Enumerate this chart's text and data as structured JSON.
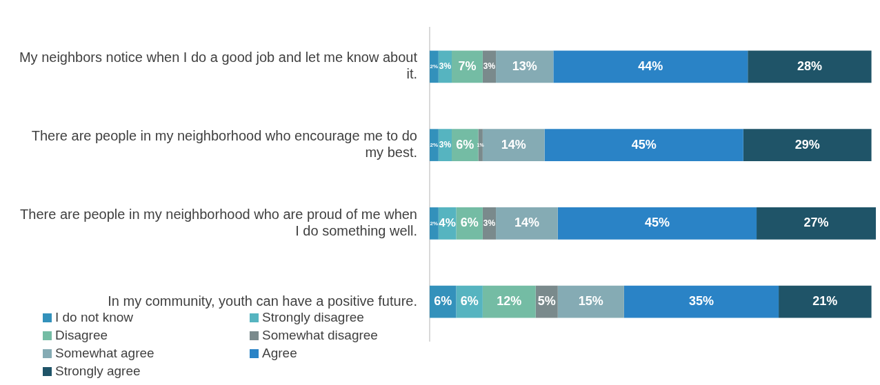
{
  "chart_data": {
    "type": "bar",
    "orientation": "horizontal",
    "stacked": true,
    "legend": "bottom left",
    "grid": false,
    "tick_labels": "y",
    "categories": [
      "My neighbors notice when I do a good job and let me know about it.",
      "There are people in my neighborhood who encourage me to do my best.",
      "There are people in my neighborhood who are proud of me when I do something well.",
      "In my community, youth can have a positive future."
    ],
    "series": [
      {
        "name": "I do not know",
        "color": "#3391bb",
        "values": [
          2,
          2,
          2,
          6
        ],
        "value_labels": [
          "2%",
          "2%",
          "2%",
          "6%"
        ]
      },
      {
        "name": "Strongly disagree",
        "color": "#56b4c0",
        "values": [
          3,
          3,
          4,
          6
        ],
        "value_labels": [
          "3%",
          "3%",
          "4%",
          "6%"
        ]
      },
      {
        "name": "Disagree",
        "color": "#74bca4",
        "values": [
          7,
          6,
          6,
          12
        ],
        "value_labels": [
          "7%",
          "6%",
          "6%",
          "12%"
        ]
      },
      {
        "name": "Somewhat disagree",
        "color": "#7a8a8c",
        "values": [
          3,
          1,
          3,
          5
        ],
        "value_labels": [
          "3%",
          "1%",
          "3%",
          "5%"
        ]
      },
      {
        "name": "Somewhat agree",
        "color": "#85abb4",
        "values": [
          13,
          14,
          14,
          15
        ],
        "value_labels": [
          "13%",
          "14%",
          "14%",
          "15%"
        ]
      },
      {
        "name": "Agree",
        "color": "#2a83c6",
        "values": [
          44,
          45,
          45,
          35
        ],
        "value_labels": [
          "44%",
          "45%",
          "45%",
          "35%"
        ]
      },
      {
        "name": "Strongly agree",
        "color": "#1f5468",
        "values": [
          28,
          29,
          27,
          21
        ],
        "value_labels": [
          "28%",
          "29%",
          "27%",
          "21%"
        ]
      }
    ]
  }
}
